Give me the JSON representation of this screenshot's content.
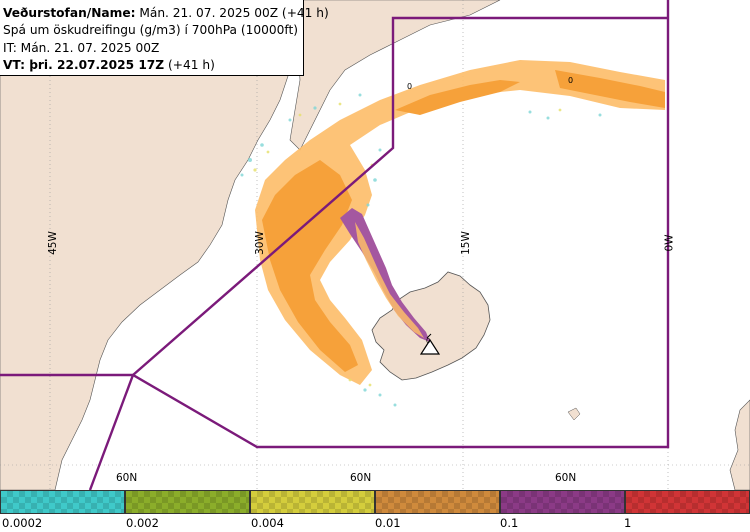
{
  "header": {
    "line1_label": "Veðurstofan/Name:",
    "line1_value": "Mán. 21. 07. 2025 00Z (+41 h)",
    "line2": "Spá um öskudreifingu (g/m3) í 700hPa (10000ft)",
    "line3": "IT: Mán. 21. 07. 2025 00Z",
    "line4_label": "VT: þri. 22.07.2025 17Z",
    "line4_value": "(+41 h)"
  },
  "map": {
    "longitude_labels": [
      "45W",
      "30W",
      "15W",
      "0W"
    ],
    "latitude_labels": [
      "60N",
      "60N",
      "60N"
    ],
    "contour_labels": [
      "0",
      "0",
      "0"
    ],
    "volcano_marker": "volcano-triangle-icon",
    "colors": {
      "land": "#f1e0d1",
      "sea": "#ffffff",
      "ash_low": "#fdbd68",
      "ash_mid": "#f6a13a",
      "ash_high": "#a457a0",
      "boundary": "#7b1a7a"
    }
  },
  "legend": {
    "colors": [
      "#3fc9c9",
      "#8bad2a",
      "#d4cd3c",
      "#cf8a3c",
      "#8b3a86",
      "#d03436"
    ],
    "tick_labels": [
      "0.0002",
      "0.002",
      "0.004",
      "0.01",
      "0.1",
      "1"
    ]
  }
}
